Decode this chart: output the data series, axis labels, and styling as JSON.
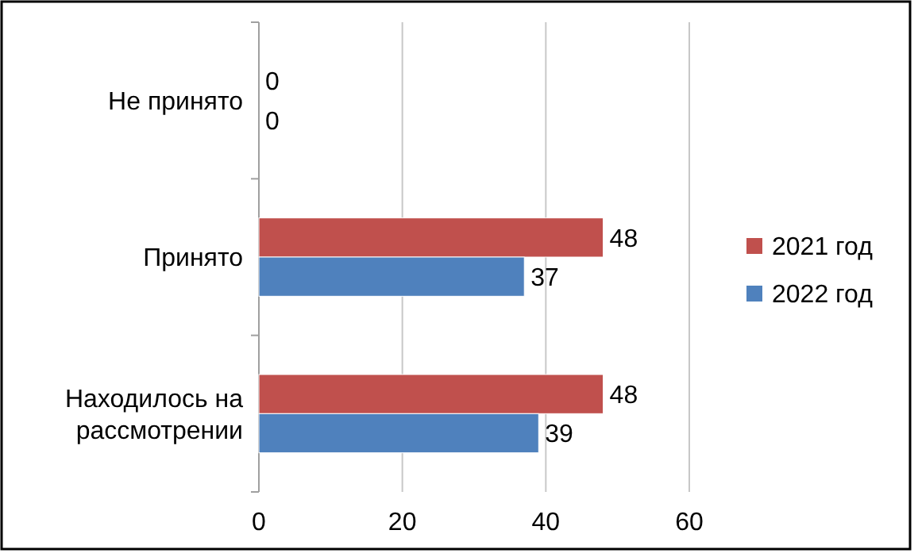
{
  "chart_data": {
    "type": "bar",
    "orientation": "horizontal",
    "categories": [
      "Не принято",
      "Принято",
      "Находилось на рассмотрении"
    ],
    "series": [
      {
        "name": "2021 год",
        "color": "#c0504d",
        "values": [
          0,
          48,
          48
        ]
      },
      {
        "name": "2022 год",
        "color": "#4f81bd",
        "values": [
          0,
          37,
          39
        ]
      }
    ],
    "xlim": [
      0,
      60
    ],
    "xticks": [
      0,
      20,
      40,
      60
    ],
    "grid": "x",
    "legend": "right",
    "data_labels": true
  }
}
